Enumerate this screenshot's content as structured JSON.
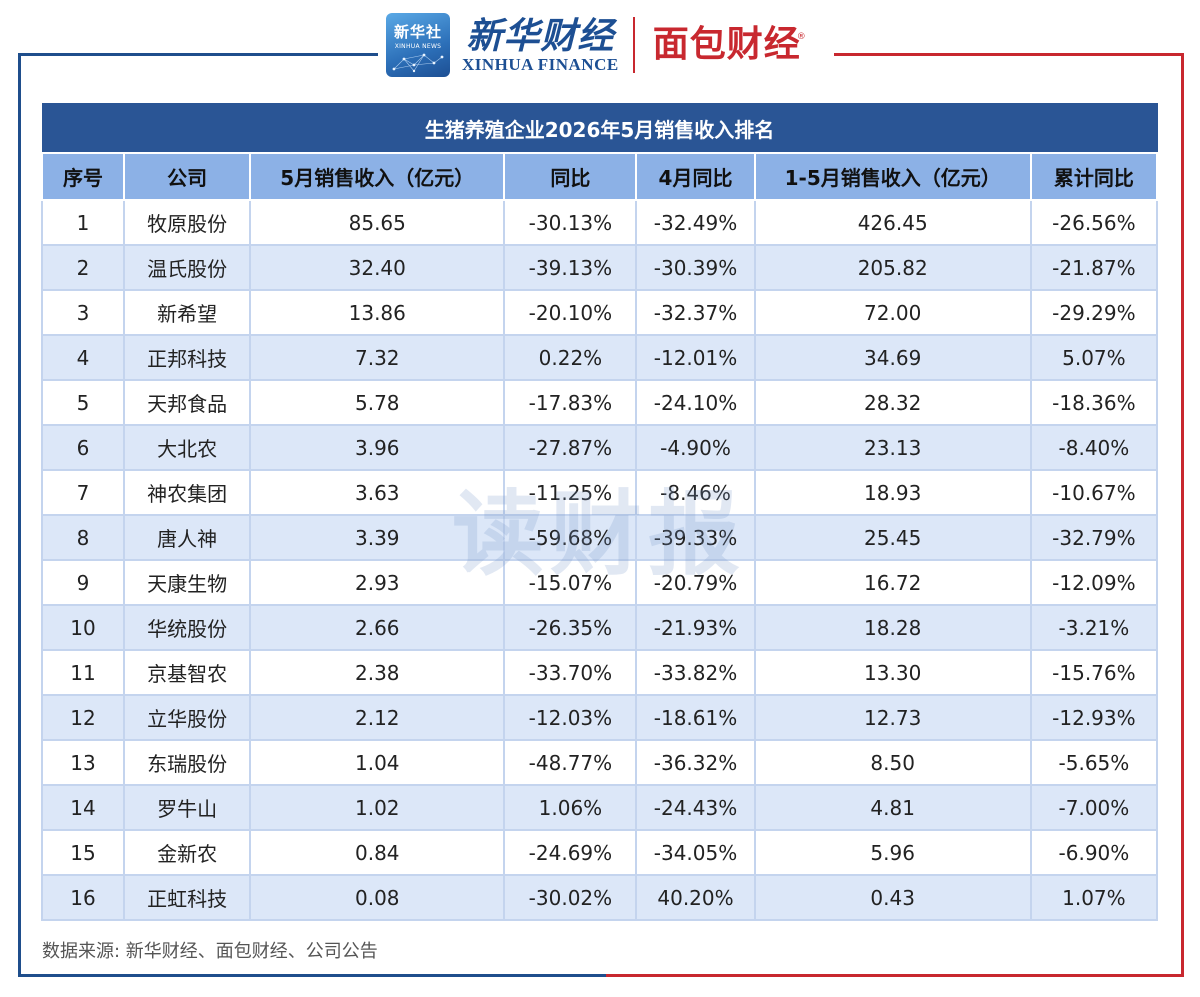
{
  "header": {
    "xinhua_logo_cn": "新华社",
    "xinhua_logo_en": "XINHUA NEWS",
    "xinhua_finance_cn": "新华财经",
    "xinhua_finance_en": "XINHUA FINANCE",
    "mianbao_cn": "面包财经",
    "mianbao_reg": "®"
  },
  "table": {
    "title": "生猪养殖企业2026年5月销售收入排名",
    "columns": [
      "序号",
      "公司",
      "5月销售收入（亿元）",
      "同比",
      "4月同比",
      "1-5月销售收入（亿元）",
      "累计同比"
    ],
    "rows": [
      [
        "1",
        "牧原股份",
        "85.65",
        "-30.13%",
        "-32.49%",
        "426.45",
        "-26.56%"
      ],
      [
        "2",
        "温氏股份",
        "32.40",
        "-39.13%",
        "-30.39%",
        "205.82",
        "-21.87%"
      ],
      [
        "3",
        "新希望",
        "13.86",
        "-20.10%",
        "-32.37%",
        "72.00",
        "-29.29%"
      ],
      [
        "4",
        "正邦科技",
        "7.32",
        "0.22%",
        "-12.01%",
        "34.69",
        "5.07%"
      ],
      [
        "5",
        "天邦食品",
        "5.78",
        "-17.83%",
        "-24.10%",
        "28.32",
        "-18.36%"
      ],
      [
        "6",
        "大北农",
        "3.96",
        "-27.87%",
        "-4.90%",
        "23.13",
        "-8.40%"
      ],
      [
        "7",
        "神农集团",
        "3.63",
        "-11.25%",
        "-8.46%",
        "18.93",
        "-10.67%"
      ],
      [
        "8",
        "唐人神",
        "3.39",
        "-59.68%",
        "-39.33%",
        "25.45",
        "-32.79%"
      ],
      [
        "9",
        "天康生物",
        "2.93",
        "-15.07%",
        "-20.79%",
        "16.72",
        "-12.09%"
      ],
      [
        "10",
        "华统股份",
        "2.66",
        "-26.35%",
        "-21.93%",
        "18.28",
        "-3.21%"
      ],
      [
        "11",
        "京基智农",
        "2.38",
        "-33.70%",
        "-33.82%",
        "13.30",
        "-15.76%"
      ],
      [
        "12",
        "立华股份",
        "2.12",
        "-12.03%",
        "-18.61%",
        "12.73",
        "-12.93%"
      ],
      [
        "13",
        "东瑞股份",
        "1.04",
        "-48.77%",
        "-36.32%",
        "8.50",
        "-5.65%"
      ],
      [
        "14",
        "罗牛山",
        "1.02",
        "1.06%",
        "-24.43%",
        "4.81",
        "-7.00%"
      ],
      [
        "15",
        "金新农",
        "0.84",
        "-24.69%",
        "-34.05%",
        "5.96",
        "-6.90%"
      ],
      [
        "16",
        "正虹科技",
        "0.08",
        "-30.02%",
        "40.20%",
        "0.43",
        "1.07%"
      ]
    ]
  },
  "watermark": "读财报",
  "source": "数据来源: 新华财经、面包财经、公司公告",
  "colors": {
    "title_bg": "#2a5595",
    "header_bg": "#8cb1e6",
    "row_alt_bg": "#dce7f8",
    "frame_blue": "#1f4e8c",
    "frame_red": "#c8282f"
  }
}
